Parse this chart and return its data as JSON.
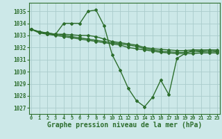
{
  "background_color": "#cce8e8",
  "grid_color": "#aacccc",
  "line_color": "#2d6e2d",
  "xlabel": "Graphe pression niveau de la mer (hPa)",
  "xlabel_fontsize": 7,
  "yticks": [
    1027,
    1028,
    1029,
    1030,
    1031,
    1032,
    1033,
    1034,
    1035
  ],
  "xticks": [
    0,
    1,
    2,
    3,
    4,
    5,
    6,
    7,
    8,
    9,
    10,
    11,
    12,
    13,
    14,
    15,
    16,
    17,
    18,
    19,
    20,
    21,
    22,
    23
  ],
  "ylim": [
    1026.5,
    1035.7
  ],
  "xlim": [
    -0.3,
    23.3
  ],
  "series": [
    {
      "x": [
        0,
        1,
        2,
        3,
        4,
        5,
        6,
        7,
        8,
        9,
        10,
        11,
        12,
        13,
        14,
        15,
        16,
        17,
        18,
        19,
        20,
        21,
        22,
        23
      ],
      "y": [
        1033.5,
        1033.2,
        1033.1,
        1033.1,
        1034.0,
        1034.0,
        1034.0,
        1035.0,
        1035.1,
        1033.8,
        1031.4,
        1030.1,
        1028.6,
        1027.6,
        1027.1,
        1027.9,
        1029.3,
        1028.1,
        1031.1,
        1031.5,
        1031.8,
        1031.7,
        1031.8,
        1031.7
      ],
      "marker": "D",
      "markersize": 2.0,
      "linewidth": 1.0
    },
    {
      "x": [
        0,
        1,
        2,
        3,
        4,
        5,
        6,
        7,
        8,
        9,
        10,
        11,
        12,
        13,
        14,
        15,
        16,
        17,
        18,
        19,
        20,
        21,
        22,
        23
      ],
      "y": [
        1033.5,
        1033.3,
        1033.2,
        1033.1,
        1033.1,
        1033.05,
        1033.0,
        1033.0,
        1032.9,
        1032.7,
        1032.5,
        1032.4,
        1032.3,
        1032.2,
        1032.0,
        1031.9,
        1031.85,
        1031.8,
        1031.75,
        1031.75,
        1031.8,
        1031.8,
        1031.8,
        1031.8
      ],
      "marker": "D",
      "markersize": 2.0,
      "linewidth": 1.0
    },
    {
      "x": [
        0,
        1,
        2,
        3,
        4,
        5,
        6,
        7,
        8,
        9,
        10,
        11,
        12,
        13,
        14,
        15,
        16,
        17,
        18,
        19,
        20,
        21,
        22,
        23
      ],
      "y": [
        1033.5,
        1033.3,
        1033.2,
        1033.1,
        1033.0,
        1032.9,
        1032.8,
        1032.7,
        1032.6,
        1032.5,
        1032.4,
        1032.3,
        1032.2,
        1032.1,
        1031.9,
        1031.8,
        1031.7,
        1031.65,
        1031.6,
        1031.6,
        1031.65,
        1031.65,
        1031.65,
        1031.65
      ],
      "marker": "D",
      "markersize": 2.0,
      "linewidth": 1.0
    },
    {
      "x": [
        0,
        1,
        2,
        3,
        4,
        5,
        6,
        7,
        8,
        9,
        10,
        11,
        12,
        13,
        14,
        15,
        16,
        17,
        18,
        19,
        20,
        21,
        22,
        23
      ],
      "y": [
        1033.5,
        1033.3,
        1033.1,
        1033.0,
        1032.9,
        1032.8,
        1032.7,
        1032.6,
        1032.5,
        1032.4,
        1032.3,
        1032.2,
        1032.0,
        1031.9,
        1031.8,
        1031.7,
        1031.6,
        1031.55,
        1031.5,
        1031.5,
        1031.5,
        1031.55,
        1031.55,
        1031.55
      ],
      "marker": "D",
      "markersize": 2.0,
      "linewidth": 1.0
    }
  ]
}
